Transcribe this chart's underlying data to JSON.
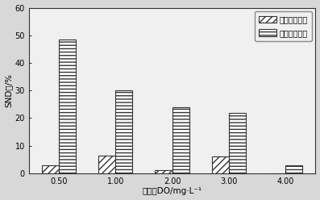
{
  "categories": [
    "0.50",
    "1.00",
    "2.00",
    "3.00",
    "4.00"
  ],
  "before_values": [
    3,
    6.5,
    1.0,
    6,
    0
  ],
  "after_values": [
    48.5,
    30,
    24,
    22,
    3
  ],
  "ylabel": "SND率/%",
  "xlabel": "溶解氧DO/mg·L⁻¹",
  "ylim": [
    0,
    60
  ],
  "yticks": [
    0,
    10,
    20,
    30,
    40,
    50,
    60
  ],
  "legend_before": "投加纤维素前",
  "legend_after": "投加纤维素后",
  "bar_width": 0.3,
  "bg_color": "#d8d8d8",
  "plot_bg_color": "#f0f0f0",
  "hatch_before": "////",
  "hatch_after": "----"
}
